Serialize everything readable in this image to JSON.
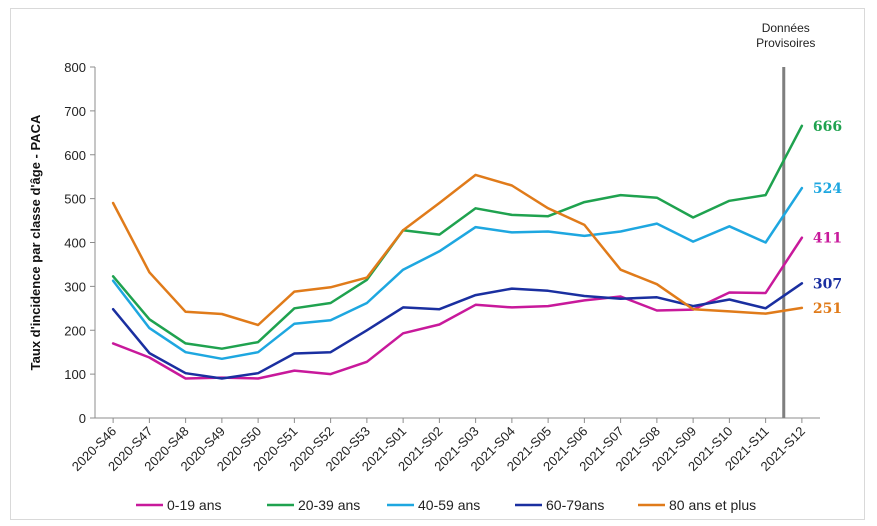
{
  "chart_data": {
    "type": "line",
    "title": "",
    "ylabel": "Taux d'incidence par classe d'âge - PACA",
    "xlabel": "",
    "ylim": [
      0,
      800
    ],
    "yticks": [
      "0",
      "100",
      "200",
      "300",
      "400",
      "500",
      "600",
      "700",
      "800"
    ],
    "categories": [
      "2020-S46",
      "2020-S47",
      "2020-S48",
      "2020-S49",
      "2020-S50",
      "2020-S51",
      "2020-S52",
      "2020-S53",
      "2021-S01",
      "2021-S02",
      "2021-S03",
      "2021-S04",
      "2021-S05",
      "2021-S06",
      "2021-S07",
      "2021-S08",
      "2021-S09",
      "2021-S10",
      "2021-S11",
      "2021-S12"
    ],
    "series": [
      {
        "name": "0-19 ans",
        "color": "#c8199b",
        "end_label": "411",
        "values": [
          170,
          138,
          90,
          92,
          90,
          108,
          100,
          128,
          193,
          213,
          258,
          252,
          255,
          268,
          277,
          245,
          247,
          286,
          285,
          411
        ]
      },
      {
        "name": "20-39 ans",
        "color": "#1fa24f",
        "end_label": "666",
        "values": [
          323,
          225,
          170,
          158,
          173,
          250,
          262,
          315,
          428,
          418,
          478,
          463,
          460,
          492,
          508,
          502,
          457,
          495,
          508,
          666
        ]
      },
      {
        "name": "40-59 ans",
        "color": "#1ea7e0",
        "end_label": "524",
        "values": [
          313,
          205,
          150,
          135,
          150,
          215,
          223,
          262,
          338,
          380,
          435,
          423,
          425,
          415,
          425,
          443,
          402,
          437,
          400,
          524
        ]
      },
      {
        "name": "60-79ans",
        "color": "#1a2fa0",
        "end_label": "307",
        "values": [
          248,
          148,
          102,
          90,
          102,
          147,
          150,
          200,
          252,
          248,
          280,
          295,
          290,
          278,
          272,
          275,
          255,
          270,
          250,
          307
        ]
      },
      {
        "name": "80 ans et plus",
        "color": "#e07b1a",
        "end_label": "251",
        "values": [
          490,
          332,
          242,
          237,
          212,
          288,
          298,
          320,
          428,
          490,
          554,
          530,
          478,
          440,
          338,
          305,
          248,
          243,
          238,
          251
        ]
      }
    ],
    "provisional_label": [
      "Données",
      "Provisoires"
    ],
    "provisional_after": "2021-S11",
    "grid": false,
    "legend_position": "bottom"
  }
}
